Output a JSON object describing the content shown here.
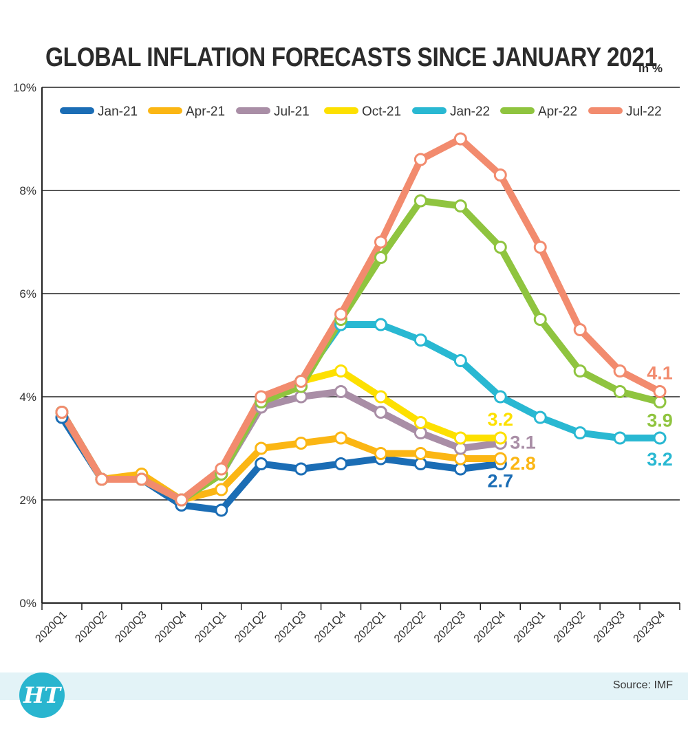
{
  "title": "GLOBAL INFLATION FORECASTS SINCE JANUARY 2021",
  "unit_label": "in %",
  "source": "Source: IMF",
  "logo_text": "HT",
  "chart_data": {
    "type": "line",
    "categories": [
      "2020Q1",
      "2020Q2",
      "2020Q3",
      "2020Q4",
      "2021Q1",
      "2021Q2",
      "2021Q3",
      "2021Q4",
      "2022Q1",
      "2022Q2",
      "2022Q3",
      "2022Q4",
      "2023Q1",
      "2023Q2",
      "2023Q3",
      "2023Q4"
    ],
    "ylim": [
      0,
      10
    ],
    "yticks": [
      "0%",
      "2%",
      "4%",
      "6%",
      "8%",
      "10%"
    ],
    "grid": true,
    "legend_position": "top",
    "series": [
      {
        "name": "Jan-21",
        "color": "#1b6db5",
        "values": [
          3.6,
          2.4,
          2.4,
          1.9,
          1.8,
          2.7,
          2.6,
          2.7,
          2.8,
          2.7,
          2.6,
          2.7,
          null,
          null,
          null,
          null
        ],
        "end_label": "2.7"
      },
      {
        "name": "Apr-21",
        "color": "#fbb614",
        "values": [
          3.7,
          2.4,
          2.5,
          2.0,
          2.2,
          3.0,
          3.1,
          3.2,
          2.9,
          2.9,
          2.8,
          2.8,
          null,
          null,
          null,
          null
        ],
        "end_label": "2.8"
      },
      {
        "name": "Jul-21",
        "color": "#a98ea6",
        "values": [
          3.7,
          2.4,
          2.4,
          2.0,
          2.5,
          3.8,
          4.0,
          4.1,
          3.7,
          3.3,
          3.0,
          3.1,
          null,
          null,
          null,
          null
        ],
        "end_label": "3.1"
      },
      {
        "name": "Oct-21",
        "color": "#fde000",
        "values": [
          3.7,
          2.4,
          2.4,
          2.0,
          2.5,
          3.9,
          4.3,
          4.5,
          4.0,
          3.5,
          3.2,
          3.2,
          null,
          null,
          null,
          null
        ],
        "end_label": "3.2"
      },
      {
        "name": "Jan-22",
        "color": "#29b8d2",
        "values": [
          3.7,
          2.4,
          2.4,
          2.0,
          2.5,
          3.9,
          4.3,
          5.4,
          5.4,
          5.1,
          4.7,
          4.0,
          3.6,
          3.3,
          3.2,
          3.2
        ],
        "end_label": "3.2"
      },
      {
        "name": "Apr-22",
        "color": "#8fc43f",
        "values": [
          3.7,
          2.4,
          2.4,
          2.0,
          2.5,
          3.9,
          4.2,
          5.5,
          6.7,
          7.8,
          7.7,
          6.9,
          5.5,
          4.5,
          4.1,
          3.9
        ],
        "end_label": "3.9"
      },
      {
        "name": "Jul-22",
        "color": "#f28b6e",
        "values": [
          3.7,
          2.4,
          2.4,
          2.0,
          2.6,
          4.0,
          4.3,
          5.6,
          7.0,
          8.6,
          9.0,
          8.3,
          6.9,
          5.3,
          4.5,
          4.1
        ],
        "end_label": "4.1"
      }
    ]
  }
}
